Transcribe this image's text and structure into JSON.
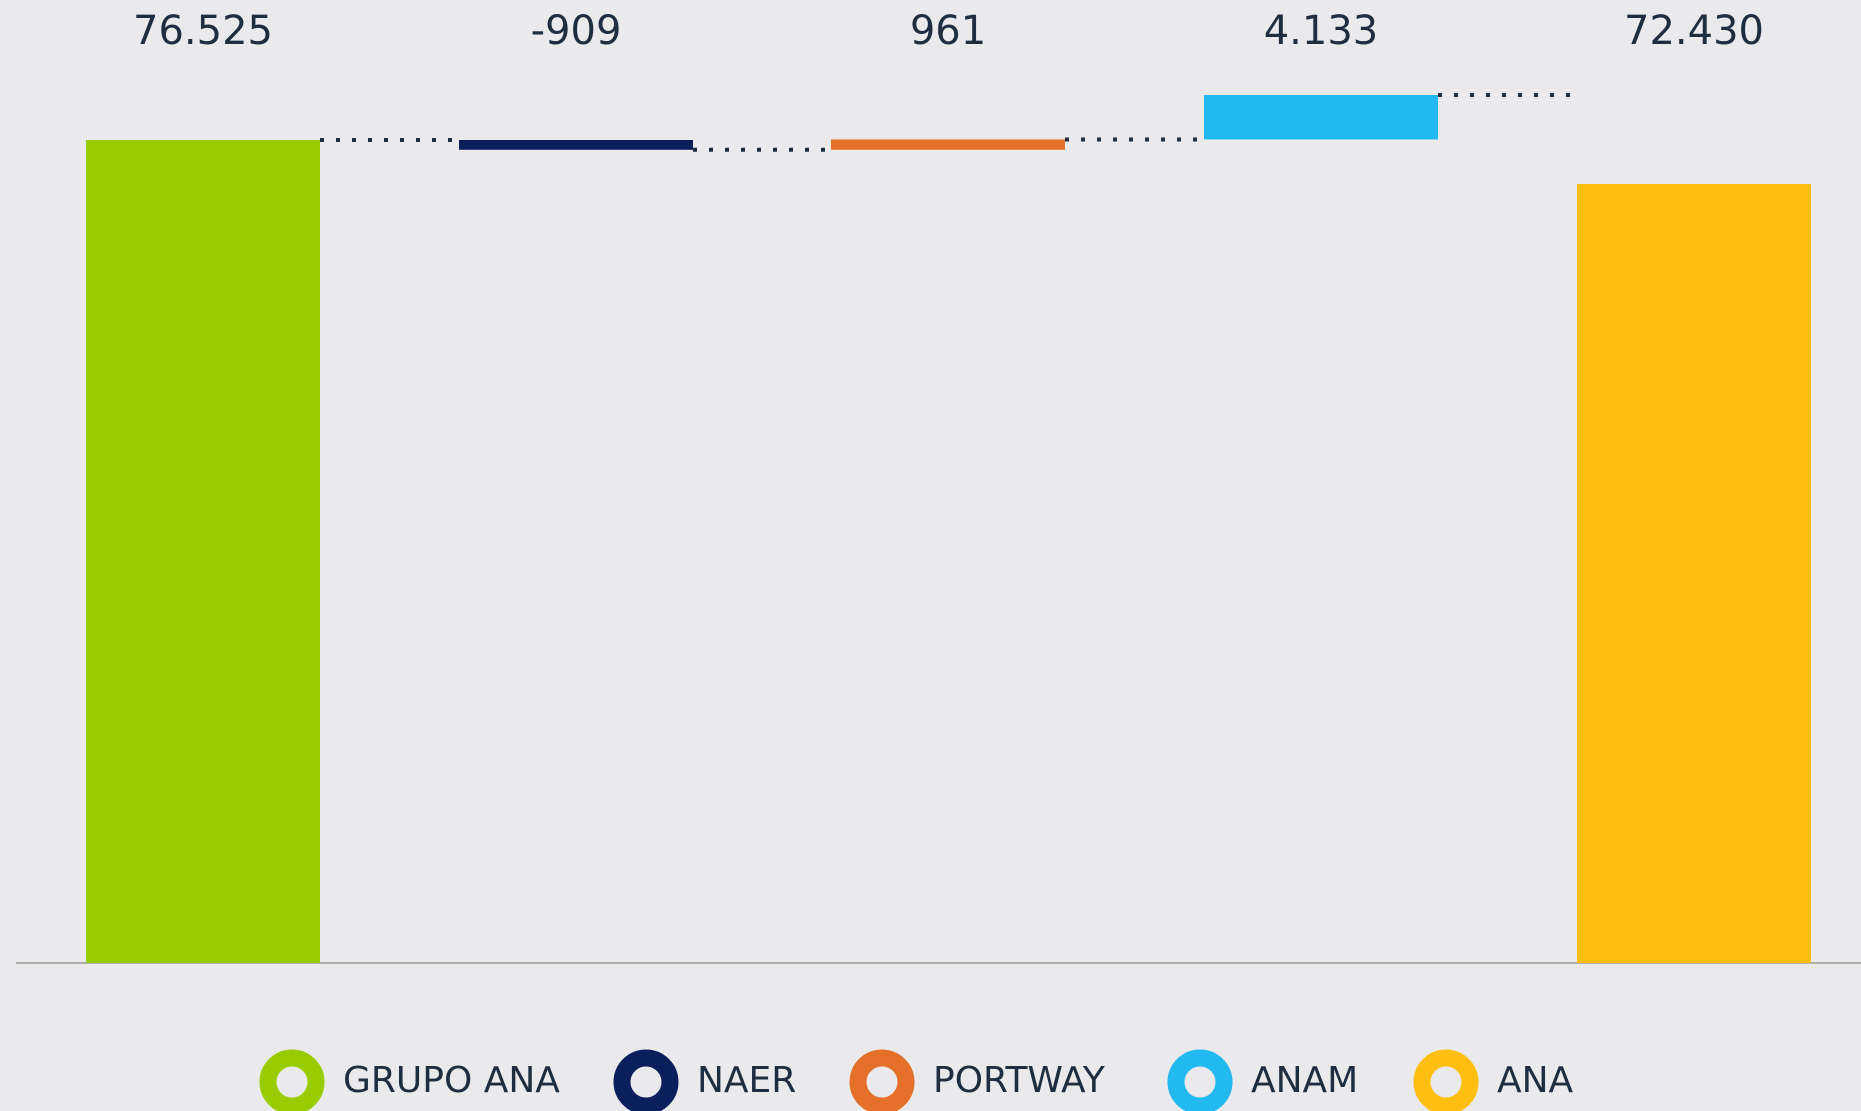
{
  "chart_data": {
    "type": "waterfall",
    "categories": [
      "GRUPO ANA",
      "NAER",
      "PORTWAY",
      "ANAM",
      "ANA"
    ],
    "values": [
      76525,
      -909,
      961,
      4133,
      72430
    ],
    "value_labels": [
      "76.525",
      "-909",
      "961",
      "4.133",
      "72.430"
    ],
    "colors": [
      "#99cc00",
      "#0a1f5c",
      "#e5702a",
      "#22b8f0",
      "#ffbf10"
    ],
    "legend": "bottom"
  }
}
